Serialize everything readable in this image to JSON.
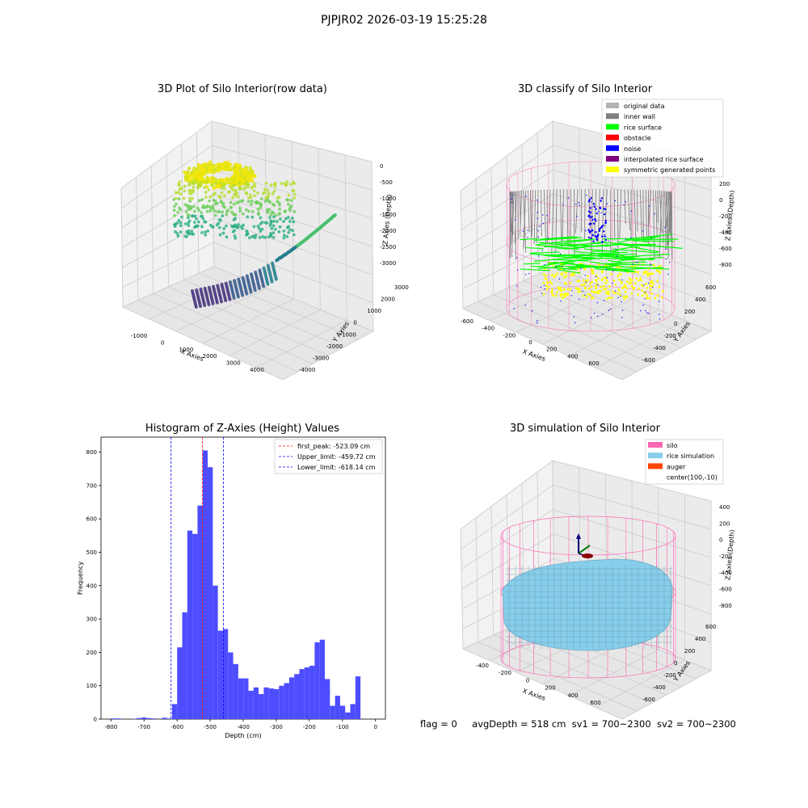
{
  "figure": {
    "suptitle": "PJPJR02 2026-03-19 15:25:28",
    "status": {
      "flag": "flag = 0",
      "avg_depth": "avgDepth = 518 cm",
      "sv1": "sv1 = 700~2300",
      "sv2": "sv2 = 700~2300"
    }
  },
  "panels": {
    "raw": {
      "title": "3D Plot of Silo Interior(row data)",
      "xlabel": "X Axies",
      "ylabel": "Y Axies",
      "zlabel": "Z Axies (Depth)",
      "xticks": [
        "-1000",
        "0",
        "1000",
        "2000",
        "3000",
        "4000"
      ],
      "yticks": [
        "3000",
        "2000",
        "1000",
        "0",
        "-1000",
        "-2000",
        "-3000",
        "-4000"
      ],
      "zticks": [
        "0",
        "-500",
        "-1000",
        "-1500",
        "-2000",
        "-2500",
        "-3000"
      ]
    },
    "classify": {
      "title": "3D classify of Silo Interior",
      "xlabel": "X Axies",
      "ylabel": "Y Axies",
      "zlabel": "Z Axies (Depth)",
      "xticks": [
        "-600",
        "-400",
        "-200",
        "0",
        "200",
        "400",
        "600"
      ],
      "yticks": [
        "600",
        "400",
        "200",
        "0",
        "-200",
        "-400",
        "-600"
      ],
      "zticks": [
        "200",
        "0",
        "-200",
        "-400",
        "-600",
        "-800"
      ],
      "legend": [
        {
          "label": "original data",
          "color": "#b3b3b3"
        },
        {
          "label": "inner wall",
          "color": "#808080"
        },
        {
          "label": "rice surface",
          "color": "#00ff00"
        },
        {
          "label": "obstacle",
          "color": "#ff0000"
        },
        {
          "label": "noise",
          "color": "#0000ff"
        },
        {
          "label": "interpolated rice surface",
          "color": "#800080"
        },
        {
          "label": "symmetric generated points",
          "color": "#ffff00"
        }
      ]
    },
    "simulation": {
      "title": "3D simulation of Silo Interior",
      "xlabel": "X Axies",
      "ylabel": "Y Axies",
      "zlabel": "Z Axies (Depth)",
      "xticks": [
        "-400",
        "-200",
        "0",
        "200",
        "400",
        "600"
      ],
      "yticks": [
        "600",
        "400",
        "200",
        "0",
        "-200",
        "-400",
        "-600"
      ],
      "zticks": [
        "400",
        "200",
        "0",
        "-200",
        "-400",
        "-600",
        "-800"
      ],
      "legend": [
        {
          "label": "silo",
          "color": "#ff69b4"
        },
        {
          "label": "rice simulation",
          "color": "#87ceeb"
        },
        {
          "label": "auger",
          "color": "#ff4500"
        },
        {
          "label": "center(100,-10)",
          "color": ""
        }
      ]
    }
  },
  "chart_data": {
    "type": "bar",
    "title": "Histogram of Z-Axies (Height) Values",
    "xlabel": "Depth (cm)",
    "ylabel": "Frequency",
    "xlim": [
      -830,
      30
    ],
    "ylim": [
      0,
      845
    ],
    "bin_width": 15.4,
    "bins_start": [
      -800.0,
      -784.6,
      -769.2,
      -753.8,
      -738.4,
      -723.0,
      -707.6,
      -692.2,
      -676.8,
      -661.4,
      -646.0,
      -630.6,
      -615.2,
      -599.8,
      -584.4,
      -569.0,
      -553.6,
      -538.2,
      -522.8,
      -507.4,
      -492.0,
      -476.6,
      -461.2,
      -445.8,
      -430.4,
      -415.0,
      -399.6,
      -384.2,
      -368.8,
      -353.4,
      -338.0,
      -322.6,
      -307.2,
      -291.8,
      -276.4,
      -261.0,
      -245.6,
      -230.2,
      -214.8,
      -199.4,
      -184.0,
      -168.6,
      -153.2,
      -137.8,
      -122.4,
      -107.0,
      -91.6,
      -76.2,
      -60.8,
      -45.4,
      -30.0,
      -14.6
    ],
    "values": [
      2,
      2,
      0,
      0,
      1,
      3,
      5,
      3,
      2,
      0,
      4,
      2,
      45,
      215,
      320,
      565,
      555,
      640,
      805,
      755,
      400,
      265,
      270,
      200,
      165,
      122,
      122,
      85,
      95,
      75,
      95,
      92,
      90,
      100,
      108,
      125,
      135,
      150,
      155,
      160,
      230,
      238,
      120,
      40,
      70,
      40,
      20,
      45,
      128,
      0,
      0,
      0
    ],
    "xticks": [
      -800,
      -700,
      -600,
      -500,
      -400,
      -300,
      -200,
      -100,
      0
    ],
    "yticks": [
      0,
      100,
      200,
      300,
      400,
      500,
      600,
      700,
      800
    ],
    "vlines": [
      {
        "value": -523.09,
        "color": "#ff0000",
        "label": "first_peak: -523.09 cm"
      },
      {
        "value": -459.72,
        "color": "#0000ff",
        "label": "Upper_limit: -459.72 cm"
      },
      {
        "value": -618.14,
        "color": "#0000ff",
        "label": "Lower_limit: -618.14 cm"
      }
    ],
    "bar_color": "#4d4dff",
    "legend_position": "top-right",
    "grid": false
  }
}
